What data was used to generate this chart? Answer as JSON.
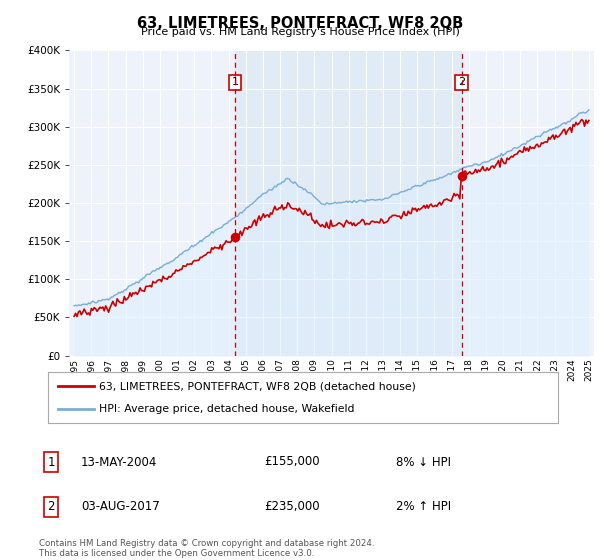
{
  "title": "63, LIMETREES, PONTEFRACT, WF8 2QB",
  "subtitle": "Price paid vs. HM Land Registry's House Price Index (HPI)",
  "legend_line1": "63, LIMETREES, PONTEFRACT, WF8 2QB (detached house)",
  "legend_line2": "HPI: Average price, detached house, Wakefield",
  "sale1_label": "1",
  "sale1_date": "13-MAY-2004",
  "sale1_price": "£155,000",
  "sale1_hpi": "8% ↓ HPI",
  "sale1_year": 2004.37,
  "sale1_value": 155000,
  "sale2_label": "2",
  "sale2_date": "03-AUG-2017",
  "sale2_price": "£235,000",
  "sale2_hpi": "2% ↑ HPI",
  "sale2_year": 2017.59,
  "sale2_value": 235000,
  "price_line_color": "#cc0000",
  "hpi_line_color": "#7aadd4",
  "hpi_fill_color": "#ddeeff",
  "vline_color": "#cc0000",
  "dot_color": "#cc0000",
  "plot_bg_color": "#eef3fb",
  "between_fill_color": "#dce8f5",
  "grid_color": "#ffffff",
  "ylim": [
    0,
    400000
  ],
  "yticks": [
    0,
    50000,
    100000,
    150000,
    200000,
    250000,
    300000,
    350000,
    400000
  ],
  "xlim_start": 1994.7,
  "xlim_end": 2025.3,
  "xlabel_years": [
    "1995",
    "1996",
    "1997",
    "1998",
    "1999",
    "2000",
    "2001",
    "2002",
    "2003",
    "2004",
    "2005",
    "2006",
    "2007",
    "2008",
    "2009",
    "2010",
    "2011",
    "2012",
    "2013",
    "2014",
    "2015",
    "2016",
    "2017",
    "2018",
    "2019",
    "2020",
    "2021",
    "2022",
    "2023",
    "2024",
    "2025"
  ],
  "footnote": "Contains HM Land Registry data © Crown copyright and database right 2024.\nThis data is licensed under the Open Government Licence v3.0."
}
